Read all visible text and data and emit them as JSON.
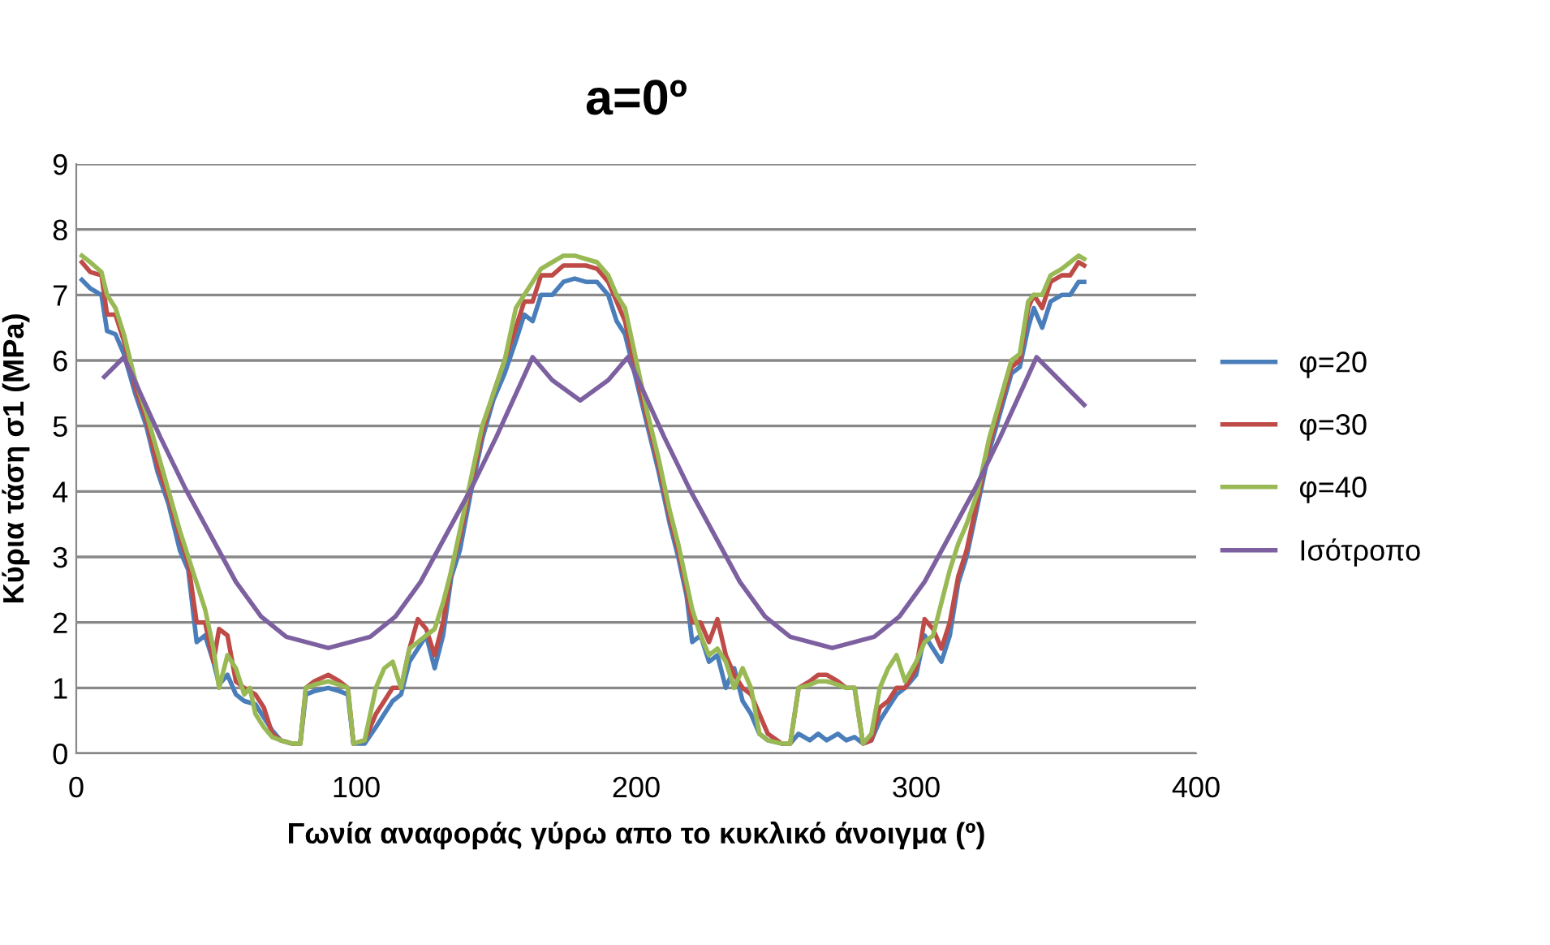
{
  "chart_data": {
    "type": "line",
    "title": "a=0º",
    "xlabel": "Γωνία αναφοράς γύρω απο το κυκλικό άνοιγμα (º)",
    "ylabel": "Κύρια τάση σ1 (MPa)",
    "xlim": [
      0,
      400
    ],
    "xticks": [
      0,
      100,
      200,
      300,
      400
    ],
    "ylim": [
      0,
      9
    ],
    "yticks": [
      0,
      1,
      2,
      3,
      4,
      5,
      6,
      7,
      8,
      9
    ],
    "grid": "y",
    "legend": "right",
    "marker": "none",
    "line_style": "solid",
    "series": [
      {
        "name": "φ=20",
        "color": "#4a7ebb",
        "x": [
          2,
          5,
          9,
          11,
          14,
          17,
          21,
          25,
          29,
          33,
          37,
          40,
          43,
          46,
          49,
          51,
          54,
          57,
          60,
          64,
          67,
          70,
          73,
          77,
          80,
          82,
          85,
          90,
          94,
          97,
          99,
          103,
          107,
          110,
          113,
          116,
          119,
          122,
          125,
          128,
          131,
          134,
          137,
          141,
          145,
          149,
          153,
          157,
          160,
          163,
          166,
          170,
          174,
          178,
          182,
          186,
          190,
          193,
          196,
          200,
          204,
          208,
          212,
          215,
          218,
          220,
          223,
          226,
          229,
          232,
          235,
          238,
          241,
          244,
          247,
          252,
          255,
          258,
          262,
          265,
          268,
          272,
          275,
          278,
          281,
          284,
          287,
          290,
          293,
          296,
          300,
          303,
          306,
          309,
          312,
          315,
          318,
          322,
          326,
          330,
          334,
          337,
          340,
          342,
          345,
          348,
          352,
          355,
          358,
          360
        ],
        "values": [
          7.23,
          7.1,
          7.0,
          6.45,
          6.4,
          6.1,
          5.5,
          5.0,
          4.3,
          3.8,
          3.1,
          2.8,
          1.7,
          1.8,
          1.4,
          1.05,
          1.2,
          0.9,
          0.8,
          0.75,
          0.55,
          0.35,
          0.2,
          0.15,
          0.15,
          0.9,
          0.95,
          1.0,
          0.95,
          0.9,
          0.15,
          0.15,
          0.4,
          0.6,
          0.8,
          0.9,
          1.4,
          1.6,
          1.8,
          1.3,
          1.8,
          2.7,
          3.1,
          4.0,
          4.8,
          5.4,
          5.8,
          6.3,
          6.7,
          6.6,
          7.0,
          7.0,
          7.2,
          7.25,
          7.2,
          7.2,
          7.0,
          6.6,
          6.4,
          5.7,
          5.0,
          4.3,
          3.5,
          3.0,
          2.4,
          1.7,
          1.8,
          1.4,
          1.5,
          1.0,
          1.3,
          0.8,
          0.6,
          0.3,
          0.2,
          0.15,
          0.15,
          0.3,
          0.2,
          0.3,
          0.2,
          0.3,
          0.2,
          0.25,
          0.15,
          0.2,
          0.5,
          0.7,
          0.9,
          1.0,
          1.2,
          1.8,
          1.6,
          1.4,
          1.8,
          2.6,
          3.0,
          3.8,
          4.6,
          5.2,
          5.8,
          5.9,
          6.5,
          6.8,
          6.5,
          6.9,
          7.0,
          7.0,
          7.2,
          7.2
        ]
      },
      {
        "name": "φ=30",
        "color": "#be4b48",
        "x": [
          2,
          5,
          9,
          11,
          14,
          17,
          21,
          25,
          29,
          33,
          37,
          40,
          43,
          46,
          49,
          51,
          54,
          57,
          60,
          64,
          67,
          70,
          73,
          77,
          80,
          82,
          85,
          90,
          94,
          97,
          99,
          103,
          107,
          110,
          113,
          116,
          119,
          122,
          125,
          128,
          131,
          134,
          137,
          141,
          145,
          149,
          153,
          157,
          160,
          163,
          166,
          170,
          174,
          178,
          182,
          186,
          190,
          193,
          196,
          200,
          204,
          208,
          212,
          215,
          218,
          220,
          223,
          226,
          229,
          232,
          235,
          238,
          241,
          244,
          247,
          252,
          255,
          258,
          262,
          265,
          268,
          272,
          275,
          278,
          281,
          284,
          287,
          290,
          293,
          296,
          300,
          303,
          306,
          309,
          312,
          315,
          318,
          322,
          326,
          330,
          334,
          337,
          340,
          342,
          345,
          348,
          352,
          355,
          358,
          360
        ],
        "values": [
          7.5,
          7.35,
          7.3,
          6.7,
          6.7,
          6.3,
          5.6,
          5.1,
          4.4,
          3.9,
          3.3,
          2.9,
          2.0,
          2.0,
          1.4,
          1.9,
          1.8,
          1.1,
          1.0,
          0.9,
          0.7,
          0.3,
          0.2,
          0.15,
          0.15,
          1.0,
          1.1,
          1.2,
          1.1,
          1.0,
          0.15,
          0.2,
          0.6,
          0.8,
          1.0,
          1.0,
          1.6,
          2.05,
          1.9,
          1.5,
          2.0,
          2.8,
          3.3,
          4.1,
          4.9,
          5.5,
          6.0,
          6.5,
          6.9,
          6.9,
          7.3,
          7.3,
          7.45,
          7.45,
          7.45,
          7.4,
          7.2,
          6.9,
          6.6,
          5.8,
          5.1,
          4.4,
          3.6,
          3.1,
          2.5,
          2.0,
          2.0,
          1.7,
          2.05,
          1.5,
          1.2,
          1.0,
          0.9,
          0.6,
          0.3,
          0.15,
          0.15,
          1.0,
          1.1,
          1.2,
          1.2,
          1.1,
          1.0,
          1.0,
          0.15,
          0.2,
          0.7,
          0.8,
          1.0,
          1.0,
          1.3,
          2.05,
          1.9,
          1.6,
          2.0,
          2.7,
          3.1,
          3.9,
          4.7,
          5.3,
          5.9,
          6.0,
          6.8,
          7.0,
          6.8,
          7.2,
          7.3,
          7.3,
          7.5,
          7.45
        ]
      },
      {
        "name": "φ=40",
        "color": "#98b954",
        "x": [
          2,
          5,
          9,
          11,
          14,
          17,
          21,
          25,
          29,
          33,
          37,
          40,
          43,
          46,
          49,
          51,
          54,
          57,
          60,
          62,
          64,
          67,
          70,
          73,
          77,
          80,
          82,
          85,
          90,
          94,
          97,
          99,
          103,
          107,
          110,
          113,
          116,
          119,
          122,
          125,
          128,
          131,
          134,
          137,
          141,
          145,
          149,
          153,
          157,
          160,
          163,
          166,
          170,
          174,
          178,
          182,
          186,
          190,
          193,
          196,
          200,
          204,
          208,
          212,
          215,
          218,
          220,
          223,
          226,
          229,
          232,
          235,
          238,
          241,
          244,
          247,
          252,
          255,
          258,
          262,
          265,
          268,
          272,
          275,
          278,
          281,
          284,
          287,
          290,
          293,
          296,
          300,
          303,
          306,
          309,
          312,
          315,
          318,
          322,
          326,
          330,
          334,
          337,
          340,
          342,
          345,
          348,
          352,
          355,
          358,
          360
        ],
        "values": [
          7.6,
          7.5,
          7.35,
          7.0,
          6.8,
          6.4,
          5.7,
          5.2,
          4.6,
          4.0,
          3.4,
          3.0,
          2.6,
          2.2,
          1.6,
          1.0,
          1.5,
          1.3,
          0.9,
          1.0,
          0.6,
          0.4,
          0.25,
          0.2,
          0.15,
          0.15,
          1.0,
          1.05,
          1.1,
          1.05,
          1.0,
          0.15,
          0.2,
          1.0,
          1.3,
          1.4,
          1.0,
          1.6,
          1.7,
          1.8,
          1.9,
          2.3,
          2.8,
          3.4,
          4.2,
          5.0,
          5.5,
          6.0,
          6.8,
          7.0,
          7.2,
          7.4,
          7.5,
          7.6,
          7.6,
          7.55,
          7.5,
          7.3,
          7.0,
          6.8,
          6.0,
          5.2,
          4.5,
          3.7,
          3.2,
          2.6,
          2.2,
          1.8,
          1.5,
          1.6,
          1.4,
          1.0,
          1.3,
          1.0,
          0.3,
          0.2,
          0.15,
          0.15,
          1.0,
          1.05,
          1.1,
          1.1,
          1.05,
          1.0,
          1.0,
          0.15,
          0.3,
          1.0,
          1.3,
          1.5,
          1.1,
          1.4,
          1.7,
          1.8,
          2.3,
          2.8,
          3.2,
          3.5,
          4.0,
          4.8,
          5.4,
          6.0,
          6.1,
          6.9,
          7.0,
          7.0,
          7.3,
          7.4,
          7.5,
          7.6,
          7.55
        ]
      },
      {
        "name": "Ισότροπο",
        "color": "#7d60a0",
        "x": [
          10,
          17,
          30,
          39,
          48,
          57,
          66,
          75,
          90,
          105,
          114,
          123,
          132,
          141,
          150,
          163,
          170,
          180,
          190,
          197,
          210,
          219,
          228,
          237,
          246,
          255,
          270,
          285,
          294,
          303,
          312,
          321,
          330,
          343,
          350,
          360
        ],
        "values": [
          5.75,
          6.05,
          4.83,
          4.04,
          3.33,
          2.62,
          2.09,
          1.78,
          1.61,
          1.78,
          2.09,
          2.62,
          3.33,
          4.04,
          4.83,
          6.05,
          5.7,
          5.39,
          5.7,
          6.05,
          4.83,
          4.04,
          3.33,
          2.62,
          2.09,
          1.78,
          1.61,
          1.78,
          2.09,
          2.62,
          3.33,
          4.04,
          4.83,
          6.05,
          5.75,
          5.32
        ]
      }
    ]
  }
}
